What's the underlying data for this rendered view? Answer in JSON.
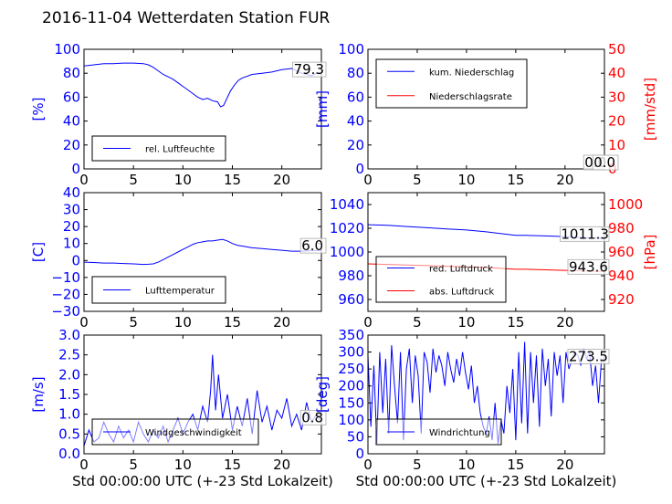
{
  "page": {
    "title": "2016-11-04 Wetterdaten Station FUR"
  },
  "colors": {
    "primary": "#0000ff",
    "secondary": "#ff0000",
    "axis": "#000000"
  },
  "chart_data": [
    {
      "id": "humidity",
      "type": "line",
      "ylabel": "[%]",
      "ylim": [
        0,
        100
      ],
      "yticks": [
        "0",
        "20",
        "40",
        "60",
        "80",
        "100"
      ],
      "xlim": [
        0,
        24
      ],
      "xticks": [
        "0",
        "5",
        "10",
        "15",
        "20"
      ],
      "xlabel": "",
      "latest_value": "79.3",
      "legend_position": "lower-left",
      "series": [
        {
          "name": "rel. Luftfeuchte",
          "color": "#0000ff",
          "x": [
            0,
            1,
            2,
            3,
            4,
            5,
            6,
            6.5,
            7,
            7.5,
            8,
            8.5,
            9,
            9.5,
            10,
            10.5,
            11,
            11.5,
            12,
            12.5,
            13,
            13.5,
            13.8,
            14.1,
            14.4,
            14.8,
            15.2,
            15.6,
            16,
            17,
            18,
            19,
            20,
            21,
            22,
            22.5,
            23,
            23.5,
            24
          ],
          "y": [
            86,
            87,
            88,
            88,
            88.5,
            88.5,
            88,
            87,
            85,
            82,
            79,
            77,
            75,
            72,
            69,
            66,
            63,
            60,
            58,
            59,
            57,
            56,
            52,
            53,
            58,
            65,
            70,
            74,
            76,
            79,
            80,
            81,
            83,
            84,
            80,
            79,
            78,
            80,
            79.3
          ]
        }
      ]
    },
    {
      "id": "precipitation",
      "type": "line",
      "ylabel": "[mm]",
      "ylim": [
        0,
        100
      ],
      "yticks": [
        "0",
        "20",
        "40",
        "60",
        "80",
        "100"
      ],
      "y2label": "[mm/std]",
      "y2lim": [
        0,
        50
      ],
      "y2ticks": [
        "0",
        "10",
        "20",
        "30",
        "40",
        "50"
      ],
      "xlim": [
        0,
        24
      ],
      "xticks": [
        "0",
        "5",
        "10",
        "15",
        "20"
      ],
      "xlabel": "",
      "latest_values": [
        "0.0",
        "0.0"
      ],
      "legend_position": "top-left",
      "series": [
        {
          "name": "kum. Niederschlag",
          "color": "#0000ff",
          "axis": "left",
          "x": [
            0,
            24
          ],
          "y": [
            0,
            0
          ]
        },
        {
          "name": "Niederschlagsrate",
          "color": "#ff0000",
          "axis": "right",
          "x": [
            0,
            24
          ],
          "y": [
            0,
            0
          ]
        }
      ]
    },
    {
      "id": "temperature",
      "type": "line",
      "ylabel": "[C]",
      "ylim": [
        -30,
        40
      ],
      "yticks": [
        "−30",
        "−20",
        "−10",
        "0",
        "10",
        "20",
        "30",
        "40"
      ],
      "xlim": [
        0,
        24
      ],
      "xticks": [
        "0",
        "5",
        "10",
        "15",
        "20"
      ],
      "xlabel": "",
      "latest_value": "6.0",
      "legend_position": "lower-left",
      "series": [
        {
          "name": "Lufttemperatur",
          "color": "#0000ff",
          "x": [
            0,
            1,
            2,
            3,
            4,
            5,
            6,
            6.5,
            7,
            7.5,
            8,
            8.5,
            9,
            9.5,
            10,
            10.5,
            11,
            11.5,
            12,
            12.5,
            13,
            13.5,
            14,
            14.5,
            15,
            15.5,
            16,
            17,
            18,
            19,
            20,
            21,
            22,
            23,
            24
          ],
          "y": [
            -1,
            -1.2,
            -1.5,
            -1.5,
            -1.8,
            -2,
            -2.3,
            -2.2,
            -2,
            -1,
            0.5,
            2,
            3.5,
            5,
            6.5,
            8,
            9.5,
            10.5,
            11,
            11.5,
            11.5,
            12,
            12.5,
            11.5,
            10,
            9,
            8.5,
            7.5,
            7,
            6.5,
            6,
            5.5,
            5.5,
            5.8,
            6
          ]
        }
      ]
    },
    {
      "id": "pressure",
      "type": "line",
      "ylabel": "",
      "ylim": [
        950,
        1050
      ],
      "yticks": [
        "960",
        "980",
        "1000",
        "1020",
        "1040"
      ],
      "y2label": "[hPa]",
      "y2lim": [
        910,
        1010
      ],
      "y2ticks": [
        "920",
        "940",
        "960",
        "980",
        "1000"
      ],
      "xlim": [
        0,
        24
      ],
      "xticks": [
        "0",
        "5",
        "10",
        "15",
        "20"
      ],
      "xlabel": "",
      "latest_values": [
        "1011.3",
        "943.6"
      ],
      "legend_position": "lower-left",
      "series": [
        {
          "name": "red. Luftdruck",
          "color": "#0000ff",
          "axis": "left",
          "x": [
            0,
            2,
            4,
            6,
            8,
            10,
            12,
            14,
            15,
            16,
            18,
            20,
            22,
            24
          ],
          "y": [
            1023,
            1022.5,
            1021.5,
            1020.5,
            1019.5,
            1018.5,
            1017,
            1015,
            1014,
            1014,
            1013.5,
            1013,
            1012,
            1011.3
          ]
        },
        {
          "name": "abs. Luftdruck",
          "color": "#ff0000",
          "axis": "right",
          "x": [
            0,
            2,
            4,
            6,
            8,
            10,
            12,
            14,
            15,
            16,
            18,
            20,
            22,
            24
          ],
          "y": [
            950,
            949.5,
            949,
            948.5,
            948,
            947.5,
            947,
            946,
            945.5,
            945.5,
            945,
            944.5,
            944,
            943.6
          ]
        }
      ]
    },
    {
      "id": "windspeed",
      "type": "line",
      "ylabel": "[m/s]",
      "ylim": [
        0,
        3
      ],
      "yticks": [
        "0.0",
        "0.5",
        "1.0",
        "1.5",
        "2.0",
        "2.5",
        "3.0"
      ],
      "xlim": [
        0,
        24
      ],
      "xticks": [
        "0",
        "5",
        "10",
        "15",
        "20"
      ],
      "xlabel": "Std 00:00:00 UTC (+-23 Std Lokalzeit)",
      "latest_value": "0.8",
      "legend_position": "lower-left",
      "series": [
        {
          "name": "Windgeschwindigkeit",
          "color": "#0000ff",
          "x": [
            0,
            0.5,
            1,
            1.5,
            2,
            2.5,
            3,
            3.5,
            4,
            4.5,
            5,
            5.5,
            6,
            6.5,
            7,
            7.5,
            8,
            8.5,
            9,
            9.5,
            10,
            10.5,
            11,
            11.5,
            12,
            12.5,
            12.8,
            13,
            13.3,
            13.6,
            14,
            14.5,
            15,
            15.5,
            16,
            16.5,
            17,
            17.5,
            18,
            18.5,
            19,
            19.5,
            20,
            20.5,
            21,
            21.5,
            22,
            22.5,
            23,
            23.5,
            24
          ],
          "y": [
            0.2,
            0.6,
            0.3,
            0.4,
            0.8,
            0.5,
            0.3,
            0.7,
            0.4,
            0.6,
            0.3,
            0.8,
            0.5,
            0.3,
            0.6,
            0.4,
            0.7,
            0.3,
            0.6,
            0.9,
            0.5,
            0.8,
            1.0,
            0.6,
            1.2,
            0.8,
            1.6,
            2.5,
            1.1,
            2.0,
            0.9,
            1.5,
            0.6,
            1.2,
            0.7,
            1.4,
            0.5,
            1.6,
            0.8,
            1.2,
            0.6,
            1.1,
            0.9,
            1.4,
            0.7,
            1.0,
            0.6,
            1.3,
            0.8,
            1.0,
            0.8
          ]
        }
      ]
    },
    {
      "id": "winddirection",
      "type": "line",
      "ylabel": "[deg]",
      "ylim": [
        0,
        350
      ],
      "yticks": [
        "0",
        "50",
        "100",
        "150",
        "200",
        "250",
        "300",
        "350"
      ],
      "xlim": [
        0,
        24
      ],
      "xticks": [
        "0",
        "5",
        "10",
        "15",
        "20"
      ],
      "xlabel": "Std 00:00:00 UTC (+-23 Std Lokalzeit)",
      "latest_value": "273.5",
      "legend_position": "lower-left",
      "series": [
        {
          "name": "Windrichtung",
          "color": "#0000ff",
          "x": [
            0,
            0.3,
            0.6,
            0.9,
            1.2,
            1.5,
            1.8,
            2.1,
            2.4,
            2.7,
            3,
            3.3,
            3.6,
            3.9,
            4.2,
            4.5,
            4.8,
            5.1,
            5.4,
            5.7,
            6,
            6.3,
            6.6,
            6.9,
            7.2,
            7.5,
            7.8,
            8.1,
            8.4,
            8.7,
            9,
            9.3,
            9.6,
            9.9,
            10.2,
            10.5,
            10.8,
            11.1,
            11.4,
            11.7,
            12,
            12.3,
            12.6,
            12.9,
            13.2,
            13.5,
            13.8,
            14.1,
            14.4,
            14.7,
            15,
            15.3,
            15.6,
            15.9,
            16.2,
            16.5,
            16.8,
            17.1,
            17.4,
            17.7,
            18,
            18.3,
            18.6,
            18.9,
            19.2,
            19.5,
            19.8,
            20.1,
            20.4,
            20.7,
            21,
            21.3,
            21.6,
            21.9,
            22.2,
            22.5,
            22.8,
            23.1,
            23.4,
            23.7,
            24
          ],
          "y": [
            290,
            80,
            260,
            30,
            300,
            120,
            280,
            60,
            320,
            200,
            90,
            300,
            40,
            250,
            310,
            150,
            290,
            230,
            60,
            300,
            270,
            180,
            310,
            240,
            290,
            260,
            200,
            300,
            250,
            210,
            280,
            230,
            300,
            240,
            190,
            260,
            150,
            200,
            120,
            80,
            60,
            110,
            40,
            150,
            30,
            100,
            60,
            200,
            120,
            250,
            40,
            300,
            90,
            330,
            60,
            300,
            150,
            290,
            80,
            310,
            200,
            280,
            110,
            300,
            230,
            290,
            150,
            300,
            250,
            280,
            300,
            290,
            260,
            310,
            280,
            300,
            200,
            260,
            150,
            280,
            273.5
          ]
        }
      ]
    }
  ]
}
